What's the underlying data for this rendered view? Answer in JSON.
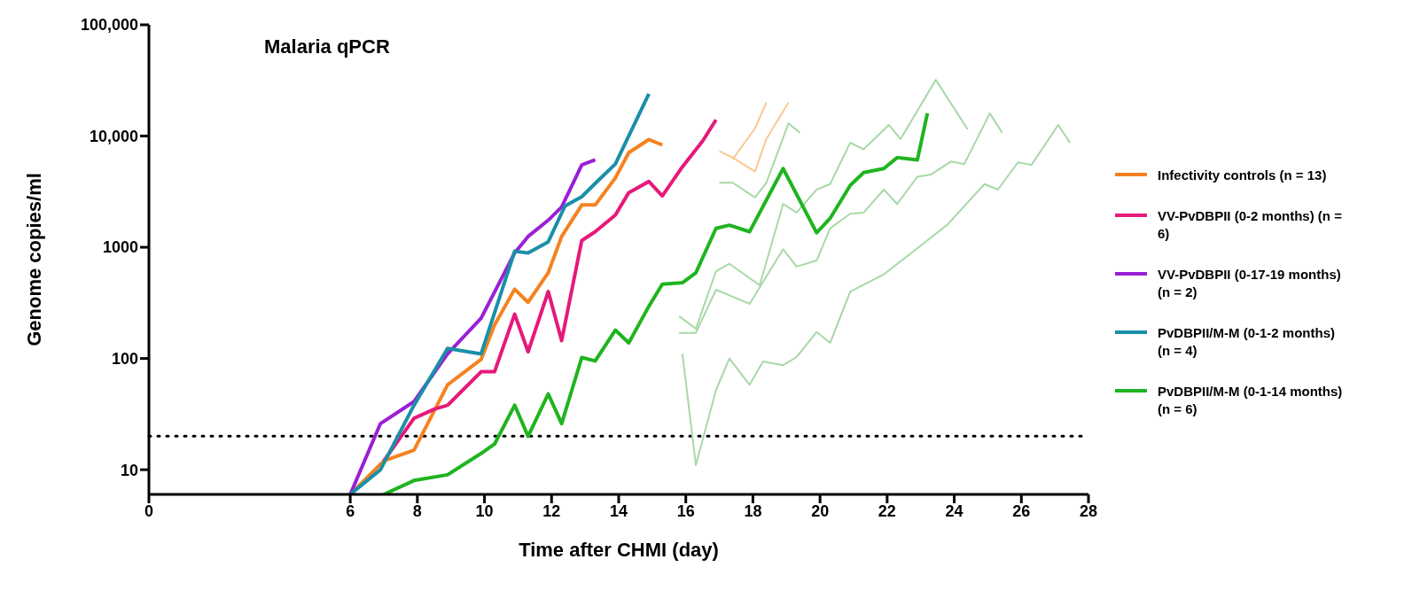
{
  "chart_data": {
    "type": "line",
    "title": "Malaria qPCR",
    "xlabel": "Time after CHMI (day)",
    "ylabel": "Genome copies/ml",
    "log": "y",
    "xlim": [
      0,
      28
    ],
    "xticks": [
      0,
      6,
      8,
      10,
      12,
      14,
      16,
      18,
      20,
      22,
      24,
      26,
      28
    ],
    "ylim": [
      6,
      100000
    ],
    "yticks": [
      {
        "value": 10,
        "label": "10"
      },
      {
        "value": 100,
        "label": "100"
      },
      {
        "value": 1000,
        "label": "1000"
      },
      {
        "value": 10000,
        "label": "10,000"
      },
      {
        "value": 100000,
        "label": "100,000"
      }
    ],
    "legend": "right",
    "ref_lines": [
      {
        "axis": "y",
        "value": 20,
        "color": "#000000",
        "line_style": "dotted"
      }
    ],
    "series": [
      {
        "color": "#a8d8a8",
        "x": [
          15.9,
          16.3,
          16.9,
          17.3,
          17.9,
          18.3,
          18.9,
          19.3,
          19.9,
          20.3,
          20.9,
          21.9,
          23.8,
          24.9,
          25.3,
          25.9,
          26.3,
          27.1,
          27.45
        ],
        "values": [
          110,
          11,
          52,
          100,
          58,
          94,
          87,
          103,
          173,
          138,
          400,
          570,
          1600,
          3700,
          3300,
          5800,
          5500,
          12600,
          8700
        ]
      },
      {
        "color": "#a8d8a8",
        "x": [
          15.8,
          16.3,
          16.9,
          17.9,
          18.9,
          19.3,
          19.9,
          20.3,
          20.9,
          21.3,
          21.9,
          22.3,
          22.9,
          23.3,
          23.9,
          24.3,
          25.06,
          25.43
        ],
        "values": [
          170,
          170,
          415,
          310,
          960,
          670,
          760,
          1480,
          2000,
          2050,
          3300,
          2450,
          4300,
          4500,
          5900,
          5600,
          16000,
          10700
        ]
      },
      {
        "color": "#a8d8a8",
        "x": [
          15.8,
          16.3,
          16.9,
          17.3,
          18.2,
          18.9,
          19.3,
          19.9,
          20.3,
          20.9,
          21.3,
          22.05,
          22.4,
          23.45,
          24.4
        ],
        "values": [
          240,
          185,
          610,
          710,
          455,
          2450,
          2050,
          3300,
          3700,
          8700,
          7600,
          12600,
          9400,
          32000,
          11500
        ]
      },
      {
        "color": "#a8d8a8",
        "x": [
          17.0,
          17.4,
          18.06,
          18.4,
          19.06,
          19.4
        ],
        "values": [
          3800,
          3800,
          2800,
          3800,
          13000,
          10700
        ]
      },
      {
        "color": "#f9c98f",
        "x": [
          17.0,
          17.4,
          18.06,
          18.4,
          19.06
        ],
        "values": [
          7300,
          6400,
          4800,
          9400,
          20000
        ]
      },
      {
        "color": "#f9c98f",
        "x": [
          17.4,
          18.06,
          18.4
        ],
        "values": [
          6200,
          11700,
          20000
        ]
      },
      {
        "name": "Infectivity controls (n = 13)",
        "color": "#f5821f",
        "x": [
          6,
          7,
          7.9,
          8.9,
          9.9,
          10.3,
          10.9,
          11.3,
          11.9,
          12.3,
          12.9,
          13.3,
          13.9,
          14.3,
          14.9,
          15.3
        ],
        "values": [
          6,
          12,
          15,
          58,
          98,
          200,
          420,
          320,
          590,
          1250,
          2400,
          2400,
          4200,
          7100,
          9300,
          8300
        ]
      },
      {
        "name": "VV-PvDBPII (0-2 months) (n = 6)",
        "color": "#e6197a",
        "x": [
          7,
          7.9,
          8.5,
          8.9,
          9.9,
          10.3,
          10.9,
          11.3,
          11.9,
          12.3,
          12.9,
          13.3,
          13.9,
          14.3,
          14.9,
          15.3,
          15.9,
          16.5,
          16.9
        ],
        "values": [
          12,
          29,
          35,
          38,
          76,
          76,
          250,
          115,
          400,
          145,
          1150,
          1380,
          1950,
          3100,
          3900,
          2900,
          5300,
          9000,
          14000
        ]
      },
      {
        "name": "VV-PvDBPII (0-17-19 months) (n = 2)",
        "color": "#9a1fd6",
        "x": [
          6,
          6.9,
          7.9,
          8.9,
          9.9,
          10.9,
          11.3,
          11.9,
          12.3,
          12.9,
          13.3
        ],
        "values": [
          6,
          26,
          41,
          110,
          230,
          890,
          1250,
          1750,
          2300,
          5500,
          6100
        ]
      },
      {
        "name": "PvDBPII/M-M  (0-1-2 months) (n = 4)",
        "color": "#1a8fa8",
        "x": [
          6,
          6.9,
          7.9,
          8.9,
          9.9,
          10.9,
          11.3,
          11.9,
          12.4,
          12.9,
          13.3,
          13.9,
          14.9
        ],
        "values": [
          6,
          10,
          38,
          123,
          110,
          920,
          890,
          1120,
          2350,
          2850,
          3750,
          5600,
          24000
        ]
      },
      {
        "name": "PvDBPII/M-M  (0-1-14 months) (n = 6)",
        "color": "#1fb41f",
        "x": [
          7,
          7.9,
          8.9,
          9.9,
          10.3,
          10.9,
          11.3,
          11.9,
          12.3,
          12.9,
          13.3,
          13.9,
          14.3,
          14.9,
          15.3,
          15.9,
          16.3,
          16.9,
          17.3,
          17.9,
          18.9,
          19.9,
          20.3,
          20.9,
          21.3,
          21.9,
          22.3,
          22.9,
          23.2
        ],
        "values": [
          6,
          8,
          9,
          14,
          17,
          38,
          20,
          48,
          26,
          102,
          95,
          180,
          138,
          295,
          465,
          480,
          590,
          1480,
          1580,
          1380,
          5100,
          1350,
          1820,
          3600,
          4700,
          5100,
          6400,
          6100,
          16000
        ]
      }
    ]
  }
}
